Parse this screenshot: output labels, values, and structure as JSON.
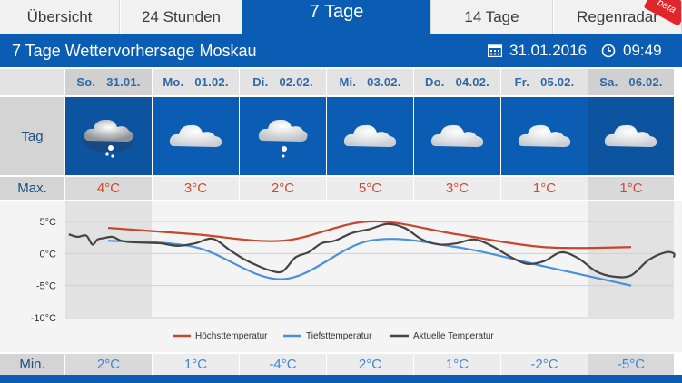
{
  "tabs": [
    {
      "label": "Übersicht",
      "active": false
    },
    {
      "label": "24 Stunden",
      "active": false
    },
    {
      "label": "7 Tage",
      "active": true
    },
    {
      "label": "14 Tage",
      "active": false
    },
    {
      "label": "Regenradar",
      "active": false
    }
  ],
  "badge": "beta",
  "header": {
    "title": "7 Tage Wettervorhersage Moskau",
    "date": "31.01.2016",
    "time": "09:49"
  },
  "row_labels": {
    "day": "Tag",
    "max": "Max.",
    "min": "Min."
  },
  "days": [
    {
      "weekday": "So.",
      "date": "31.01.",
      "icon": "snow-cloud-icon",
      "max": "4°C",
      "min": "2°C"
    },
    {
      "weekday": "Mo.",
      "date": "01.02.",
      "icon": "cloud-icon",
      "max": "3°C",
      "min": "1°C"
    },
    {
      "weekday": "Di.",
      "date": "02.02.",
      "icon": "snow-cloud-icon",
      "max": "2°C",
      "min": "-4°C"
    },
    {
      "weekday": "Mi.",
      "date": "03.02.",
      "icon": "cloud-icon",
      "max": "5°C",
      "min": "2°C"
    },
    {
      "weekday": "Do.",
      "date": "04.02.",
      "icon": "cloud-icon",
      "max": "3°C",
      "min": "1°C"
    },
    {
      "weekday": "Fr.",
      "date": "05.02.",
      "icon": "cloud-icon",
      "max": "1°C",
      "min": "-2°C"
    },
    {
      "weekday": "Sa.",
      "date": "06.02.",
      "icon": "cloud-icon",
      "max": "1°C",
      "min": "-5°C"
    }
  ],
  "chart_data": {
    "type": "line",
    "y_ticks": [
      "5°C",
      "0°C",
      "-5°C",
      "-10°C"
    ],
    "ylim": [
      -10,
      5
    ],
    "legend_position": "bottom",
    "categories": [
      "31.01.",
      "01.02.",
      "02.02.",
      "03.02.",
      "04.02.",
      "05.02.",
      "06.02."
    ],
    "series": [
      {
        "name": "Höchsttemperatur",
        "color": "#c8452e",
        "values": [
          4,
          3,
          2,
          5,
          3,
          1,
          1
        ]
      },
      {
        "name": "Tiefsttemperatur",
        "color": "#4a90d9",
        "values": [
          2,
          1,
          -4,
          2,
          1,
          -2,
          -5
        ]
      },
      {
        "name": "Aktuelle Temperatur",
        "color": "#444444",
        "x": [
          -0.45,
          -0.35,
          -0.25,
          -0.18,
          -0.12,
          -0.05,
          0.05,
          0.15,
          0.25,
          0.4,
          0.6,
          0.8,
          1.0,
          1.2,
          1.4,
          1.55,
          1.7,
          1.85,
          2.0,
          2.15,
          2.3,
          2.45,
          2.6,
          2.8,
          3.0,
          3.2,
          3.4,
          3.6,
          3.8,
          4.0,
          4.2,
          4.4,
          4.6,
          4.8,
          5.0,
          5.2,
          5.4,
          5.6,
          5.8,
          6.0,
          6.2,
          6.4,
          6.6,
          6.8
        ],
        "values": [
          3,
          2.6,
          2.8,
          1.4,
          2.2,
          2.4,
          2.6,
          2.0,
          1.8,
          1.7,
          1.6,
          1.2,
          1.6,
          2.3,
          0.5,
          -0.8,
          -1.8,
          -2.6,
          -2.8,
          -0.6,
          0.2,
          1.6,
          2.0,
          3.2,
          3.8,
          4.6,
          4.0,
          2.2,
          1.4,
          1.6,
          2.2,
          1.2,
          -0.4,
          -1.6,
          -1.2,
          0.2,
          -0.8,
          -2.8,
          -3.6,
          -3.4,
          -1.0,
          0.2,
          0,
          -0.6
        ]
      }
    ]
  },
  "colors": {
    "brand_blue": "#0a5db3",
    "max_red": "#d0472d",
    "min_blue": "#3b86d9"
  }
}
